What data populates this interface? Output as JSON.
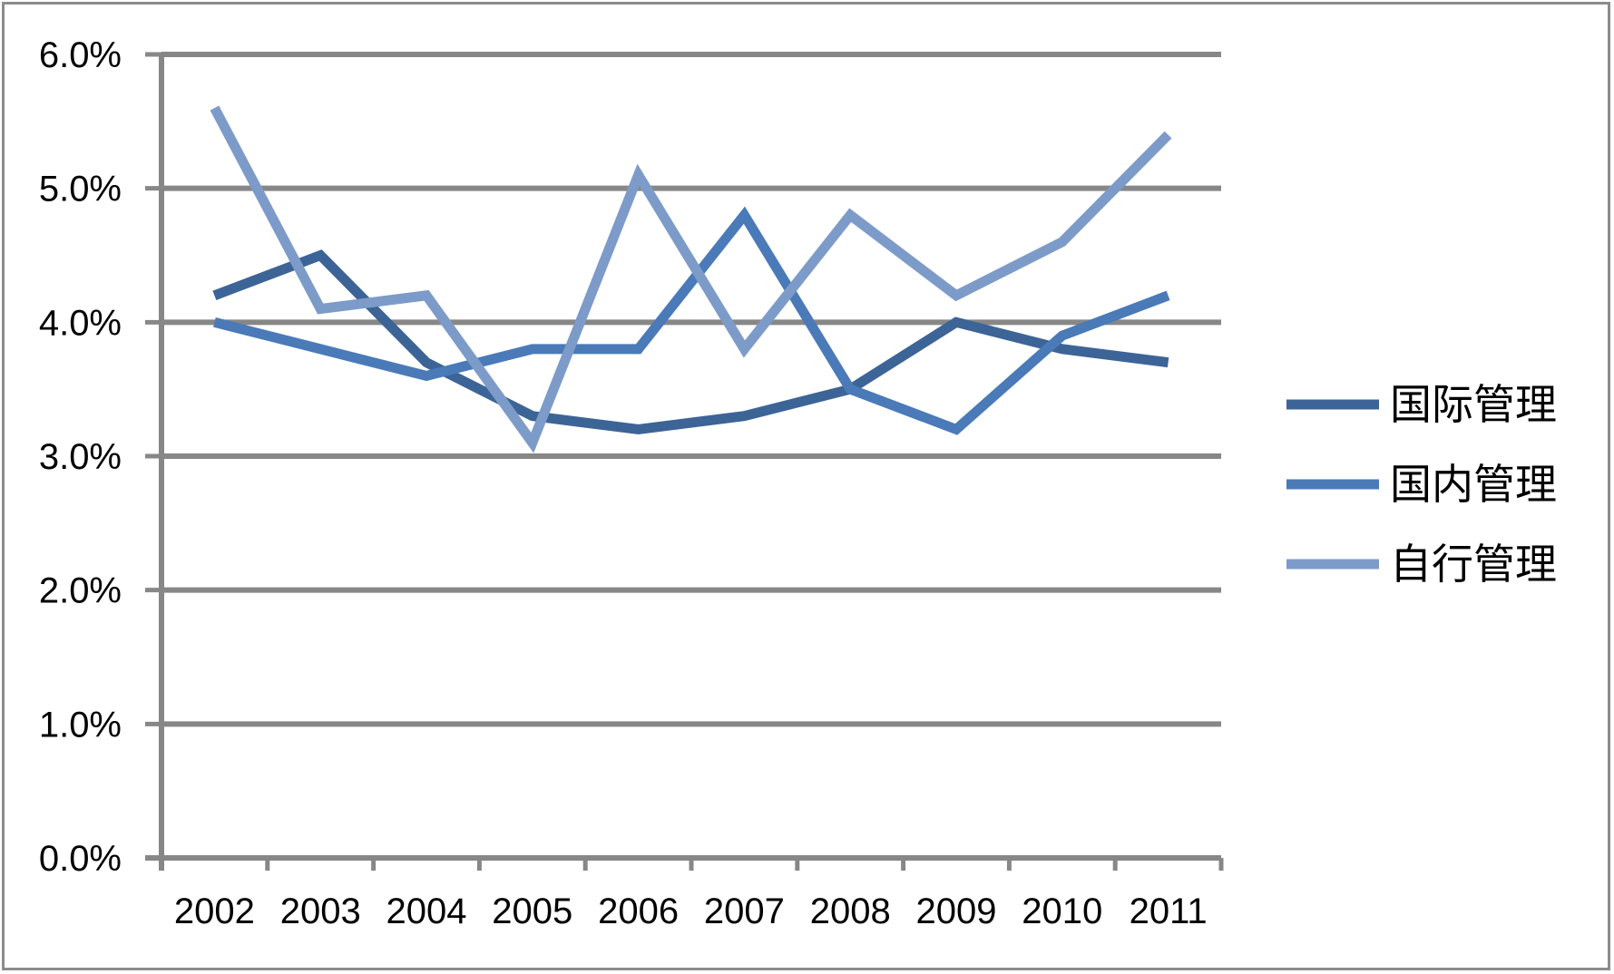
{
  "chart_data": {
    "type": "line",
    "title": "",
    "xlabel": "",
    "ylabel": "",
    "categories": [
      "2002",
      "2003",
      "2004",
      "2005",
      "2006",
      "2007",
      "2008",
      "2009",
      "2010",
      "2011"
    ],
    "ylim": [
      0.0,
      6.0
    ],
    "yticks": [
      0.0,
      1.0,
      2.0,
      3.0,
      4.0,
      5.0,
      6.0
    ],
    "ytick_labels": [
      "0.0%",
      "1.0%",
      "2.0%",
      "3.0%",
      "4.0%",
      "5.0%",
      "6.0%"
    ],
    "grid": true,
    "legend_position": "right",
    "series": [
      {
        "name": "国际管理",
        "color": "#3d6497",
        "values": [
          4.2,
          4.5,
          3.7,
          3.3,
          3.2,
          3.3,
          3.5,
          4.0,
          3.8,
          3.7
        ]
      },
      {
        "name": "国内管理",
        "color": "#4a7ab8",
        "values": [
          4.0,
          3.8,
          3.6,
          3.8,
          3.8,
          4.8,
          3.5,
          3.2,
          3.9,
          4.2
        ]
      },
      {
        "name": "自行管理",
        "color": "#7d9bc9",
        "values": [
          5.6,
          4.1,
          4.2,
          3.1,
          5.1,
          3.8,
          4.8,
          4.2,
          4.6,
          5.4
        ]
      }
    ]
  }
}
